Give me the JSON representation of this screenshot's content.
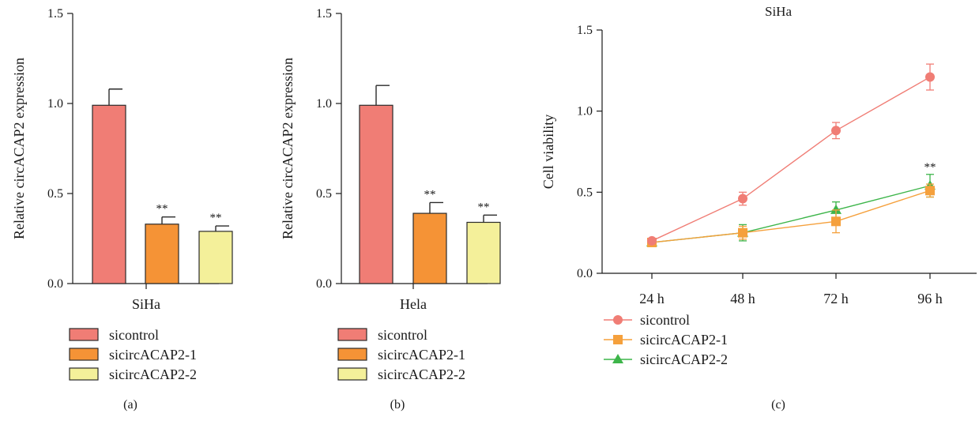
{
  "colors": {
    "sicontrol": "#F07D75",
    "sicircACAP2-1": "#F59336",
    "sicircACAP2-2": "#F4F09A",
    "line_sicontrol": "#F07D75",
    "line_sicircACAP2-1": "#F5A03C",
    "line_sicircACAP2-2": "#3DB54A",
    "axis": "#1a1a1a"
  },
  "chart_data": [
    {
      "panel": "(a)",
      "type": "bar",
      "ylabel": "Relative circACAP2 expression",
      "xlabel": "SiHa",
      "ylim": [
        0,
        1.5
      ],
      "yticks": [
        "0.0",
        "0.5",
        "1.0",
        "1.5"
      ],
      "series": [
        {
          "name": "sicontrol",
          "value": 0.99,
          "error": 0.09,
          "sig": ""
        },
        {
          "name": "sicircACAP2-1",
          "value": 0.33,
          "error": 0.04,
          "sig": "**"
        },
        {
          "name": "sicircACAP2-2",
          "value": 0.29,
          "error": 0.03,
          "sig": "**"
        }
      ],
      "legend": [
        "sicontrol",
        "sicircACAP2-1",
        "sicircACAP2-2"
      ],
      "legend_position": "bottom"
    },
    {
      "panel": "(b)",
      "type": "bar",
      "ylabel": "Relative circACAP2 expression",
      "xlabel": "Hela",
      "ylim": [
        0,
        1.5
      ],
      "yticks": [
        "0.0",
        "0.5",
        "1.0",
        "1.5"
      ],
      "series": [
        {
          "name": "sicontrol",
          "value": 0.99,
          "error": 0.11,
          "sig": ""
        },
        {
          "name": "sicircACAP2-1",
          "value": 0.39,
          "error": 0.06,
          "sig": "**"
        },
        {
          "name": "sicircACAP2-2",
          "value": 0.34,
          "error": 0.04,
          "sig": "**"
        }
      ],
      "legend": [
        "sicontrol",
        "sicircACAP2-1",
        "sicircACAP2-2"
      ],
      "legend_position": "bottom"
    },
    {
      "panel": "(c)",
      "type": "line",
      "title": "SiHa",
      "ylabel": "Cell viability",
      "ylim": [
        0,
        1.5
      ],
      "yticks": [
        "0.0",
        "0.5",
        "1.0",
        "1.5"
      ],
      "categories": [
        "24 h",
        "48 h",
        "72 h",
        "96 h"
      ],
      "series": [
        {
          "name": "sicontrol",
          "marker": "circle",
          "values": [
            0.2,
            0.46,
            0.88,
            1.21
          ],
          "errors": [
            0.01,
            0.04,
            0.05,
            0.08
          ]
        },
        {
          "name": "sicircACAP2-1",
          "marker": "square",
          "values": [
            0.19,
            0.25,
            0.32,
            0.51
          ],
          "errors": [
            0.01,
            0.04,
            0.07,
            0.04
          ]
        },
        {
          "name": "sicircACAP2-2",
          "marker": "triangle",
          "values": [
            0.19,
            0.25,
            0.39,
            0.54
          ],
          "errors": [
            0.01,
            0.05,
            0.05,
            0.07
          ]
        }
      ],
      "annotations": [
        {
          "category": "96 h",
          "text": "**"
        }
      ],
      "legend": [
        "sicontrol",
        "sicircACAP2-1",
        "sicircACAP2-2"
      ],
      "legend_position": "bottom-left"
    }
  ]
}
